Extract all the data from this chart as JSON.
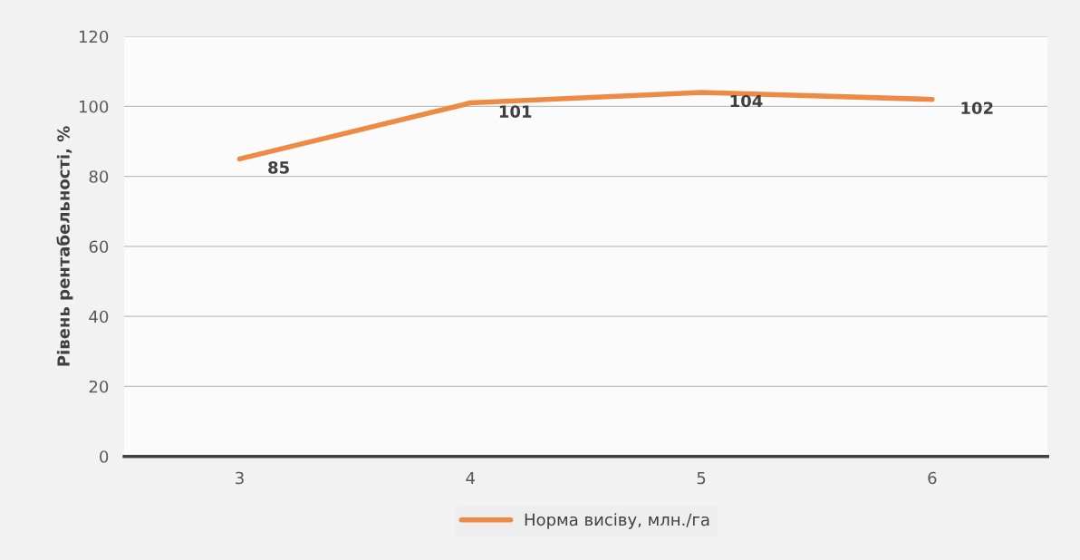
{
  "chart_data": {
    "type": "line",
    "ylabel": "Рівень рентабельності, %",
    "categories": [
      "3",
      "4",
      "5",
      "6"
    ],
    "series": [
      {
        "name": "Норма висіву, млн./га",
        "color": "#ed8b45",
        "values": [
          85,
          101,
          104,
          102
        ]
      }
    ],
    "ylim": [
      0,
      120
    ],
    "yticks": [
      0,
      20,
      40,
      60,
      80,
      100,
      120
    ],
    "grid": "y",
    "legend": "bottom",
    "data_labels": true,
    "marker": "none",
    "line_style": "solid"
  }
}
